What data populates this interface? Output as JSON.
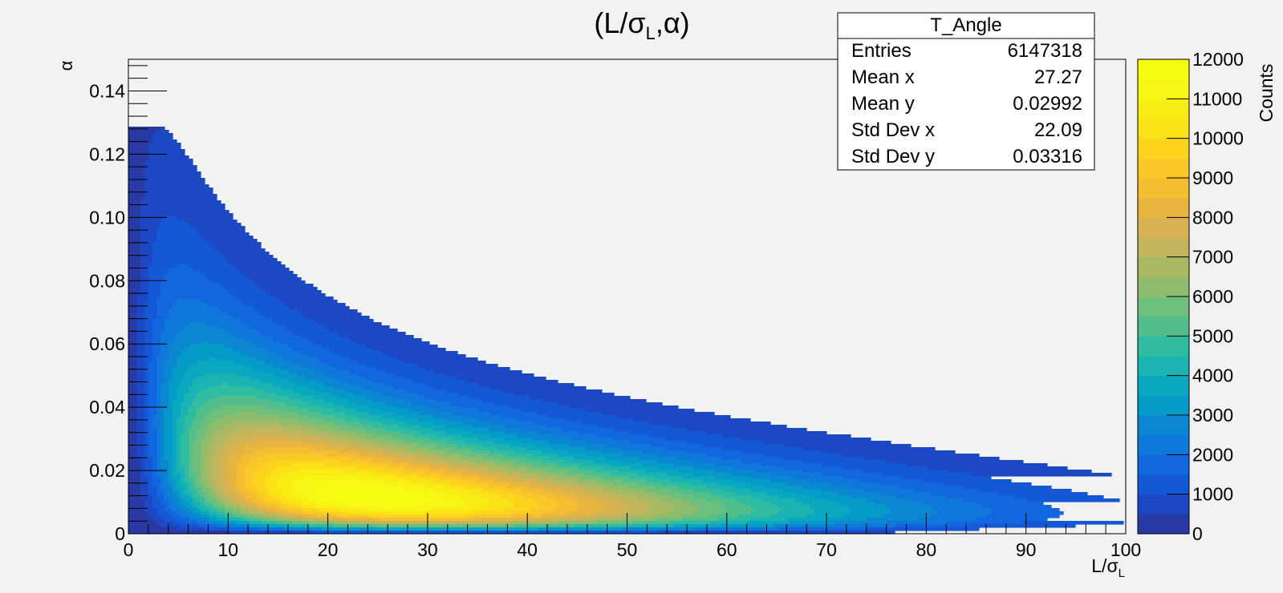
{
  "chart_data": {
    "type": "heatmap",
    "title": "(L/σ_L,α)",
    "title_main": "(L/σ",
    "title_sub": "L",
    "title_tail": ",α)",
    "xlabel_main": "L/σ",
    "xlabel_sub": "L",
    "ylabel": "α",
    "xlim": [
      0,
      100
    ],
    "ylim": [
      0,
      0.15
    ],
    "x_ticks": [
      "0",
      "10",
      "20",
      "30",
      "40",
      "50",
      "60",
      "70",
      "80",
      "90",
      "100"
    ],
    "y_ticks": [
      "0",
      "0.02",
      "0.04",
      "0.06",
      "0.08",
      "0.10",
      "0.12",
      "0.14"
    ],
    "colorbar": {
      "label": "Counts",
      "range": [
        0,
        12000
      ],
      "ticks": [
        "0",
        "1000",
        "2000",
        "3000",
        "4000",
        "5000",
        "6000",
        "7000",
        "8000",
        "9000",
        "10000",
        "11000",
        "12000"
      ],
      "levels": 24,
      "palette": [
        "#2a3aa5",
        "#1c48c4",
        "#1458d6",
        "#1266de",
        "#0f78da",
        "#0a87d0",
        "#069ac8",
        "#0aa8c0",
        "#1bb4b2",
        "#30bca0",
        "#52be8c",
        "#6fbf7c",
        "#8fbd6d",
        "#aab963",
        "#c2b55c",
        "#d6b251",
        "#e8b540",
        "#f5be32",
        "#fac828",
        "#fcd41e",
        "#fbe218",
        "#f9ee14",
        "#f8f614",
        "#f6fb12"
      ]
    },
    "peak": {
      "x": 24,
      "y": 0.007,
      "counts": 12000
    }
  },
  "stats_box": {
    "title": "T_Angle",
    "rows": [
      {
        "label": "Entries",
        "value": "6147318"
      },
      {
        "label": "Mean x",
        "value": "27.27"
      },
      {
        "label": "Mean y",
        "value": "0.02992"
      },
      {
        "label": "Std Dev x",
        "value": "22.09"
      },
      {
        "label": "Std Dev y",
        "value": "0.03316"
      }
    ]
  }
}
